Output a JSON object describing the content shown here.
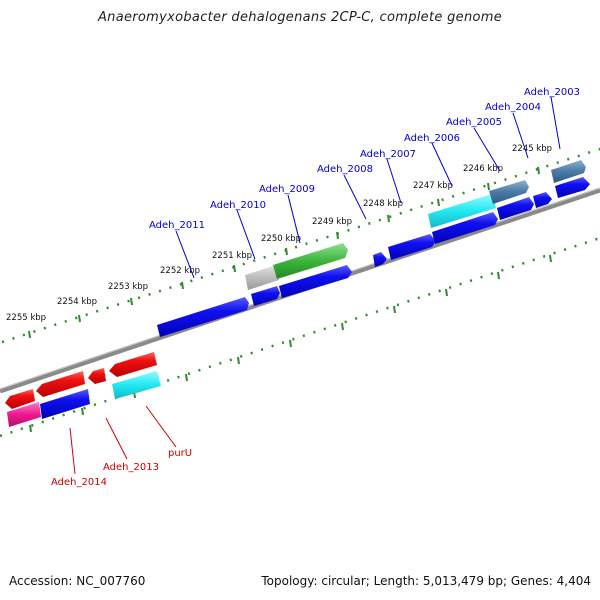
{
  "title": "Anaeromyxobacter dehalogenans 2CP-C, complete genome",
  "footer": {
    "accession": "Accession: NC_007760",
    "summary": "Topology: circular; Length: 5,013,479 bp; Genes: 4,404"
  },
  "colors": {
    "forward_gene": "#0000ee",
    "reverse_gene": "#ee0000",
    "label_forward": "#0000cc",
    "label_reverse": "#cc0000",
    "tick": "#2e8b2e",
    "backbone": "#8a8a8a"
  },
  "kbp_ticks": [
    "2255 kbp",
    "2254 kbp",
    "2253 kbp",
    "2252 kbp",
    "2251 kbp",
    "2250 kbp",
    "2249 kbp",
    "2248 kbp",
    "2247 kbp",
    "2246 kbp",
    "2245 kbp"
  ],
  "gene_labels_forward": [
    "Adeh_2003",
    "Adeh_2004",
    "Adeh_2005",
    "Adeh_2006",
    "Adeh_2007",
    "Adeh_2008",
    "Adeh_2009",
    "Adeh_2010",
    "Adeh_2011"
  ],
  "gene_labels_reverse": [
    "purU",
    "Adeh_2013",
    "Adeh_2014"
  ]
}
